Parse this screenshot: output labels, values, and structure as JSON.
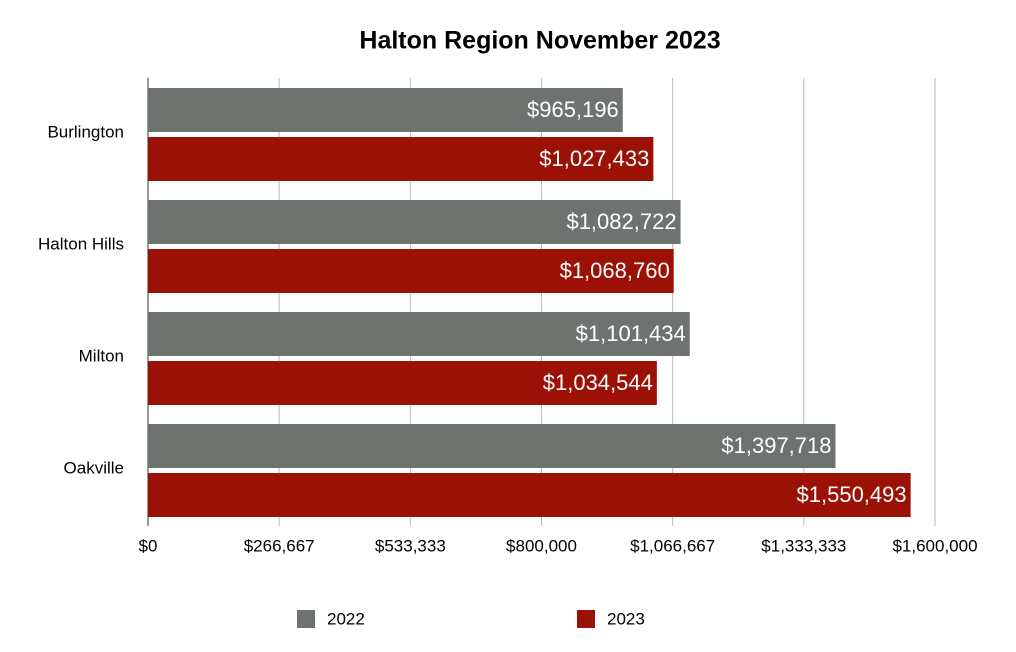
{
  "chart_data": {
    "type": "hbar",
    "title": "Halton Region November 2023",
    "categories": [
      "Burlington",
      "Halton Hills",
      "Milton",
      "Oakville"
    ],
    "series": [
      {
        "name": "2022",
        "color": "#6f7370",
        "values": [
          965196,
          1082722,
          1101434,
          1397718
        ],
        "value_labels": [
          "$965,196",
          "$1,082,722",
          "$1,101,434",
          "$1,397,718"
        ]
      },
      {
        "name": "2023",
        "color": "#9c1106",
        "values": [
          1027433,
          1068760,
          1034544,
          1550493
        ],
        "value_labels": [
          "$1,027,433",
          "$1,068,760",
          "$1,034,544",
          "$1,550,493"
        ]
      }
    ],
    "xlim": [
      0,
      1600000
    ],
    "xticks": [
      {
        "value": 0,
        "label": "$0"
      },
      {
        "value": 266666.67,
        "label": "$266,667"
      },
      {
        "value": 533333.33,
        "label": "$533,333"
      },
      {
        "value": 800000,
        "label": "$800,000"
      },
      {
        "value": 1066666.67,
        "label": "$1,066,667"
      },
      {
        "value": 1333333.33,
        "label": "$1,333,333"
      },
      {
        "value": 1600000,
        "label": "$1,600,000"
      }
    ],
    "grid": true,
    "legend": "bottom"
  }
}
